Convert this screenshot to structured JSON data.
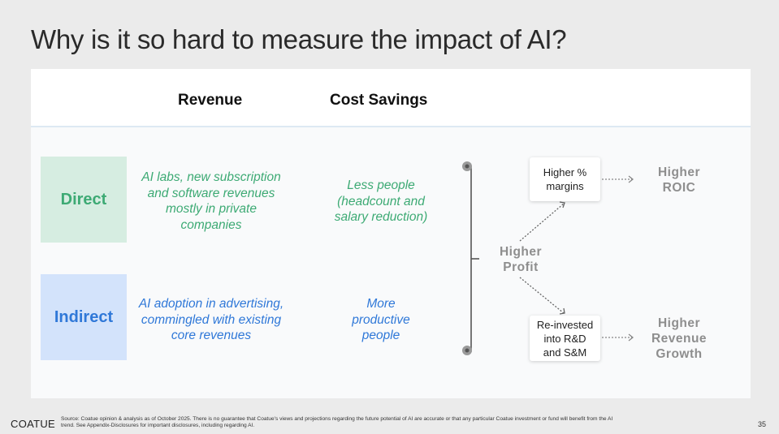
{
  "title": "Why is it so hard to measure the impact of AI?",
  "columns": {
    "revenue": "Revenue",
    "cost_savings": "Cost Savings"
  },
  "rows": {
    "direct": {
      "label": "Direct",
      "revenue_lines": [
        "AI labs, new subscription",
        "and software revenues",
        "mostly in private",
        "companies"
      ],
      "cost_lines": [
        "Less people",
        "(headcount and",
        "salary reduction)"
      ]
    },
    "indirect": {
      "label": "Indirect",
      "revenue_lines": [
        "AI adoption in advertising,",
        "commingled with existing",
        "core revenues"
      ],
      "cost_lines": [
        "More",
        "productive",
        "people"
      ]
    }
  },
  "flow": {
    "center_lines": [
      "Higher",
      "Profit"
    ],
    "top_card_lines": [
      "Higher %",
      "margins"
    ],
    "bottom_card_lines": [
      "Re-invested",
      "into R&D",
      "and S&M"
    ],
    "top_result_lines": [
      "Higher",
      "ROIC"
    ],
    "bottom_result_lines": [
      "Higher",
      "Revenue",
      "Growth"
    ]
  },
  "footer": {
    "logo": "COATUE",
    "source_lines": [
      "Source: Coatue opinion & analysis as of October 2025. There is no guarantee that Coatue's views and projections regarding the future potential of AI are accurate or that any particular Coatue investment or fund will benefit from the AI",
      "trend. See Appendix-Disclosures for important disclosures, including regarding AI."
    ],
    "page_number": "35"
  },
  "colors": {
    "direct_fill": "#d6ede1",
    "direct_text": "#3daa74",
    "indirect_fill": "#d3e3fb",
    "indirect_text": "#2f78d8",
    "result_text": "#8e8e8e"
  }
}
